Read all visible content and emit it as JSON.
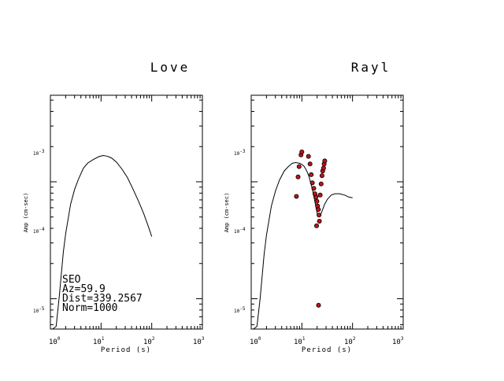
{
  "chart_data": [
    {
      "type": "line",
      "title": "Love",
      "xlabel": "Period (s)",
      "ylabel": "Amp (cm-sec)",
      "xscale": "log",
      "yscale": "log",
      "xlim": [
        1,
        1000
      ],
      "ylim": [
        5.5e-05,
        0.0055
      ],
      "grid": false,
      "x_tick_labels": [
        {
          "base": "10",
          "exp": "0",
          "value": 1
        },
        {
          "base": "10",
          "exp": "1",
          "value": 10
        },
        {
          "base": "10",
          "exp": "2",
          "value": 100
        },
        {
          "base": "10",
          "exp": "3",
          "value": 1000
        }
      ],
      "y_tick_labels": [
        {
          "base": "10",
          "exp": "-3",
          "value": 0.001
        },
        {
          "base": "10",
          "exp": "-4",
          "value": 0.0001
        },
        {
          "base": "10",
          "exp": "-5",
          "value": 1e-05
        }
      ],
      "series": [
        {
          "style": "line",
          "x": [
            1.1,
            1.3,
            1.5,
            1.8,
            2.0,
            2.5,
            3.0,
            3.6,
            4.5,
            5.5,
            7,
            9,
            11,
            13,
            16,
            20,
            26,
            33,
            42,
            55,
            70,
            85,
            100
          ],
          "y": [
            5.5e-05,
            5.8e-05,
            0.000105,
            0.00025,
            0.00036,
            0.00064,
            0.00086,
            0.00106,
            0.00131,
            0.00145,
            0.00155,
            0.00164,
            0.00168,
            0.00166,
            0.0016,
            0.00148,
            0.00128,
            0.00109,
            0.00088,
            0.00068,
            0.00053,
            0.00042,
            0.00034
          ]
        }
      ],
      "annotations": {
        "station": "SEO",
        "az": "Az=59.9",
        "dist": "Dist=339.2567",
        "norm": "Norm=1000"
      }
    },
    {
      "type": "line",
      "title": "Rayl",
      "xlabel": "Period (s)",
      "ylabel": "Amp (cm-sec)",
      "xscale": "log",
      "yscale": "log",
      "xlim": [
        1,
        1000
      ],
      "ylim": [
        5.5e-05,
        0.0055
      ],
      "grid": false,
      "x_tick_labels": [
        {
          "base": "10",
          "exp": "0",
          "value": 1
        },
        {
          "base": "10",
          "exp": "1",
          "value": 10
        },
        {
          "base": "10",
          "exp": "2",
          "value": 100
        },
        {
          "base": "10",
          "exp": "3",
          "value": 1000
        }
      ],
      "y_tick_labels": [
        {
          "base": "10",
          "exp": "-3",
          "value": 0.001
        },
        {
          "base": "10",
          "exp": "-4",
          "value": 0.0001
        },
        {
          "base": "10",
          "exp": "-5",
          "value": 1e-05
        }
      ],
      "series": [
        {
          "style": "line",
          "x": [
            1.1,
            1.3,
            1.5,
            1.8,
            2.0,
            2.5,
            3.0,
            3.6,
            4.5,
            5.5,
            6.5,
            7.5,
            9,
            10,
            11,
            12,
            13,
            14,
            15,
            16,
            17,
            18,
            19,
            20,
            21,
            23,
            25,
            28,
            32,
            38,
            45,
            55,
            70,
            85,
            100
          ],
          "y": [
            5.5e-05,
            5.8e-05,
            0.0001,
            0.00024,
            0.00035,
            0.00062,
            0.00083,
            0.00103,
            0.00124,
            0.00136,
            0.00144,
            0.00146,
            0.00144,
            0.00141,
            0.00136,
            0.00128,
            0.00119,
            0.00109,
            0.00097,
            0.00087,
            0.00077,
            0.00068,
            0.0006,
            0.00054,
            0.00051,
            0.00051,
            0.00056,
            0.00064,
            0.00071,
            0.00077,
            0.00079,
            0.00079,
            0.00077,
            0.00074,
            0.00073
          ]
        },
        {
          "style": "scatter",
          "color": "#c0131b",
          "x": [
            7.8,
            8.4,
            8.8,
            9.6,
            10.0,
            13.5,
            14.5,
            15.3,
            16.1,
            17.2,
            18.1,
            19.0,
            19.8,
            20.4,
            21.2,
            21.8,
            22.2,
            23.0,
            24.0,
            25.0,
            25.8,
            26.8,
            27.5,
            28.3
          ],
          "y": [
            0.00075,
            0.0011,
            0.00135,
            0.0017,
            0.0018,
            0.00165,
            0.00142,
            0.00115,
            0.00098,
            0.00088,
            0.00079,
            0.00074,
            0.00068,
            0.00062,
            0.00058,
            0.00052,
            0.00046,
            0.00077,
            0.00096,
            0.00113,
            0.00124,
            0.00131,
            0.00142,
            0.00151
          ]
        },
        {
          "style": "scatter",
          "color": "#c0131b",
          "x": [
            19.5,
            21.3
          ],
          "y": [
            0.00042,
            8.8e-05
          ]
        }
      ]
    }
  ]
}
